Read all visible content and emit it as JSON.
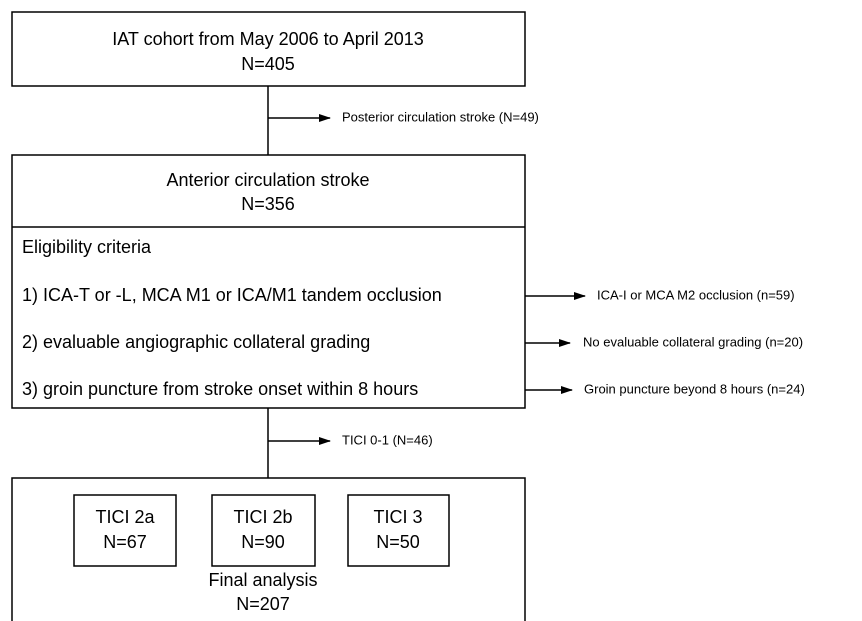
{
  "cohort": {
    "title": "IAT cohort from May 2006 to April 2013",
    "count": "N=405"
  },
  "posterior_exclusion": "Posterior circulation stroke (N=49)",
  "anterior": {
    "title": "Anterior circulation stroke",
    "count": "N=356"
  },
  "eligibility": {
    "heading": "Eligibility criteria",
    "criteria": [
      "1) ICA-T or -L, MCA M1 or ICA/M1 tandem occlusion",
      "2) evaluable angiographic collateral grading",
      "3) groin puncture from stroke onset within 8 hours"
    ],
    "exclusions": [
      "ICA-I or MCA M2 occlusion (n=59)",
      "No evaluable collateral grading (n=20)",
      "Groin puncture beyond 8 hours (n=24)"
    ]
  },
  "tici_exclusion": "TICI 0-1 (N=46)",
  "final": {
    "groups": [
      {
        "label": "TICI 2a",
        "count": "N=67"
      },
      {
        "label": "TICI 2b",
        "count": "N=90"
      },
      {
        "label": "TICI 3",
        "count": "N=50"
      }
    ],
    "title": "Final analysis",
    "count": "N=207"
  }
}
